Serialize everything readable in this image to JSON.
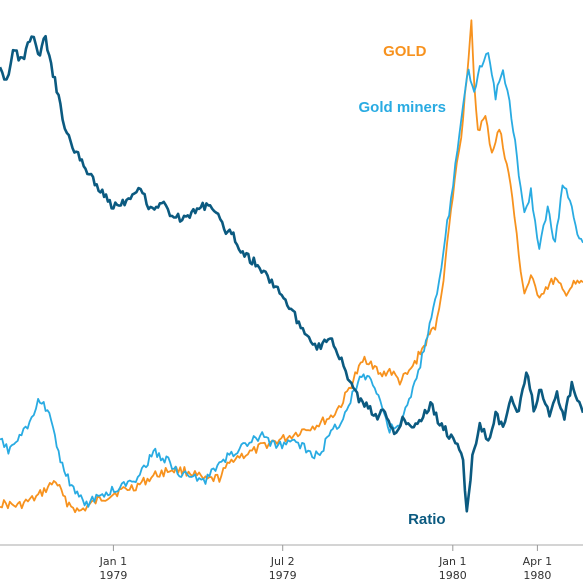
{
  "chart_data": {
    "type": "line",
    "title": "",
    "xlabel": "",
    "ylabel": "",
    "x_range": [
      "1978-09-01",
      "1980-05-20"
    ],
    "grid": false,
    "legend": "inline labels",
    "x_ticks": [
      {
        "date": "1979-01-01",
        "line1": "Jan 1",
        "line2": "1979"
      },
      {
        "date": "1979-07-02",
        "line1": "Jul 2",
        "line2": "1979"
      },
      {
        "date": "1980-01-01",
        "line1": "Jan 1",
        "line2": "1980"
      },
      {
        "date": "1980-04-01",
        "line1": "Apr 1",
        "line2": "1980"
      }
    ],
    "series": [
      {
        "name": "GOLD",
        "color": "#f7921e",
        "label_date": "1980-01-12",
        "points": [
          [
            "1978-09-01",
            0.08
          ],
          [
            "1978-09-20",
            0.07
          ],
          [
            "1978-10-10",
            0.1
          ],
          [
            "1978-10-31",
            0.16
          ],
          [
            "1978-11-10",
            0.09
          ],
          [
            "1978-11-25",
            0.05
          ],
          [
            "1978-12-15",
            0.09
          ],
          [
            "1979-01-05",
            0.12
          ],
          [
            "1979-01-25",
            0.14
          ],
          [
            "1979-02-15",
            0.18
          ],
          [
            "1979-03-05",
            0.2
          ],
          [
            "1979-03-25",
            0.19
          ],
          [
            "1979-04-10",
            0.16
          ],
          [
            "1979-04-25",
            0.17
          ],
          [
            "1979-05-10",
            0.24
          ],
          [
            "1979-05-30",
            0.26
          ],
          [
            "1979-06-15",
            0.29
          ],
          [
            "1979-07-05",
            0.31
          ],
          [
            "1979-07-25",
            0.34
          ],
          [
            "1979-08-10",
            0.36
          ],
          [
            "1979-08-25",
            0.39
          ],
          [
            "1979-09-05",
            0.44
          ],
          [
            "1979-09-18",
            0.53
          ],
          [
            "1979-09-28",
            0.59
          ],
          [
            "1979-10-05",
            0.58
          ],
          [
            "1979-10-15",
            0.53
          ],
          [
            "1979-10-25",
            0.55
          ],
          [
            "1979-11-05",
            0.51
          ],
          [
            "1979-11-15",
            0.54
          ],
          [
            "1979-11-25",
            0.6
          ],
          [
            "1979-12-05",
            0.66
          ],
          [
            "1979-12-15",
            0.72
          ],
          [
            "1979-12-22",
            0.88
          ],
          [
            "1979-12-28",
            1.05
          ],
          [
            "1980-01-03",
            1.22
          ],
          [
            "1980-01-10",
            1.38
          ],
          [
            "1980-01-14",
            1.52
          ],
          [
            "1980-01-18",
            1.66
          ],
          [
            "1980-01-21",
            1.77
          ],
          [
            "1980-01-24",
            1.55
          ],
          [
            "1980-01-28",
            1.4
          ],
          [
            "1980-02-05",
            1.44
          ],
          [
            "1980-02-12",
            1.32
          ],
          [
            "1980-02-20",
            1.4
          ],
          [
            "1980-02-28",
            1.28
          ],
          [
            "1980-03-05",
            1.16
          ],
          [
            "1980-03-12",
            0.95
          ],
          [
            "1980-03-18",
            0.82
          ],
          [
            "1980-03-25",
            0.88
          ],
          [
            "1980-04-01",
            0.81
          ],
          [
            "1980-04-10",
            0.84
          ],
          [
            "1980-04-20",
            0.87
          ],
          [
            "1980-04-30",
            0.82
          ],
          [
            "1980-05-10",
            0.85
          ],
          [
            "1980-05-20",
            0.86
          ]
        ]
      },
      {
        "name": "Gold miners",
        "color": "#29abe2",
        "label_date": "1979-12-22",
        "points": [
          [
            "1978-09-01",
            0.3
          ],
          [
            "1978-09-10",
            0.27
          ],
          [
            "1978-09-22",
            0.31
          ],
          [
            "1978-10-05",
            0.37
          ],
          [
            "1978-10-12",
            0.44
          ],
          [
            "1978-10-20",
            0.42
          ],
          [
            "1978-10-28",
            0.35
          ],
          [
            "1978-11-05",
            0.24
          ],
          [
            "1978-11-15",
            0.15
          ],
          [
            "1978-11-25",
            0.1
          ],
          [
            "1978-12-05",
            0.08
          ],
          [
            "1978-12-20",
            0.11
          ],
          [
            "1979-01-10",
            0.14
          ],
          [
            "1979-01-25",
            0.17
          ],
          [
            "1979-02-05",
            0.22
          ],
          [
            "1979-02-15",
            0.26
          ],
          [
            "1979-03-01",
            0.23
          ],
          [
            "1979-03-15",
            0.18
          ],
          [
            "1979-04-01",
            0.17
          ],
          [
            "1979-04-10",
            0.16
          ],
          [
            "1979-04-25",
            0.22
          ],
          [
            "1979-05-10",
            0.26
          ],
          [
            "1979-05-25",
            0.29
          ],
          [
            "1979-06-10",
            0.32
          ],
          [
            "1979-06-25",
            0.28
          ],
          [
            "1979-07-10",
            0.3
          ],
          [
            "1979-07-25",
            0.28
          ],
          [
            "1979-08-05",
            0.24
          ],
          [
            "1979-08-15",
            0.28
          ],
          [
            "1979-08-25",
            0.34
          ],
          [
            "1979-09-05",
            0.38
          ],
          [
            "1979-09-15",
            0.46
          ],
          [
            "1979-09-25",
            0.54
          ],
          [
            "1979-10-05",
            0.52
          ],
          [
            "1979-10-15",
            0.44
          ],
          [
            "1979-10-25",
            0.34
          ],
          [
            "1979-11-05",
            0.36
          ],
          [
            "1979-11-15",
            0.44
          ],
          [
            "1979-11-25",
            0.54
          ],
          [
            "1979-12-05",
            0.68
          ],
          [
            "1979-12-15",
            0.82
          ],
          [
            "1979-12-22",
            0.98
          ],
          [
            "1979-12-30",
            1.15
          ],
          [
            "1980-01-06",
            1.32
          ],
          [
            "1980-01-12",
            1.5
          ],
          [
            "1980-01-18",
            1.62
          ],
          [
            "1980-01-24",
            1.52
          ],
          [
            "1980-01-30",
            1.62
          ],
          [
            "1980-02-08",
            1.66
          ],
          [
            "1980-02-16",
            1.52
          ],
          [
            "1980-02-24",
            1.6
          ],
          [
            "1980-03-02",
            1.5
          ],
          [
            "1980-03-10",
            1.3
          ],
          [
            "1980-03-18",
            1.1
          ],
          [
            "1980-03-25",
            1.18
          ],
          [
            "1980-04-03",
            0.98
          ],
          [
            "1980-04-12",
            1.12
          ],
          [
            "1980-04-20",
            1.0
          ],
          [
            "1980-04-28",
            1.2
          ],
          [
            "1980-05-06",
            1.16
          ],
          [
            "1980-05-14",
            1.04
          ],
          [
            "1980-05-20",
            1.0
          ]
        ]
      },
      {
        "name": "Ratio",
        "color": "#0b5a80",
        "label_date": "1980-01-12",
        "points": [
          [
            "1978-09-01",
            1.63
          ],
          [
            "1978-09-08",
            1.57
          ],
          [
            "1978-09-15",
            1.68
          ],
          [
            "1978-09-25",
            1.64
          ],
          [
            "1978-10-05",
            1.74
          ],
          [
            "1978-10-12",
            1.66
          ],
          [
            "1978-10-20",
            1.72
          ],
          [
            "1978-10-28",
            1.6
          ],
          [
            "1978-11-05",
            1.48
          ],
          [
            "1978-11-12",
            1.38
          ],
          [
            "1978-11-20",
            1.33
          ],
          [
            "1978-11-28",
            1.28
          ],
          [
            "1978-12-08",
            1.24
          ],
          [
            "1978-12-18",
            1.18
          ],
          [
            "1979-01-01",
            1.13
          ],
          [
            "1979-01-15",
            1.15
          ],
          [
            "1979-01-28",
            1.2
          ],
          [
            "1979-02-10",
            1.12
          ],
          [
            "1979-02-22",
            1.14
          ],
          [
            "1979-03-05",
            1.1
          ],
          [
            "1979-03-18",
            1.08
          ],
          [
            "1979-04-01",
            1.12
          ],
          [
            "1979-04-15",
            1.14
          ],
          [
            "1979-04-28",
            1.06
          ],
          [
            "1979-05-10",
            1.02
          ],
          [
            "1979-05-22",
            0.96
          ],
          [
            "1979-06-05",
            0.92
          ],
          [
            "1979-06-18",
            0.87
          ],
          [
            "1979-07-01",
            0.82
          ],
          [
            "1979-07-15",
            0.74
          ],
          [
            "1979-07-28",
            0.68
          ],
          [
            "1979-08-10",
            0.63
          ],
          [
            "1979-08-20",
            0.67
          ],
          [
            "1979-09-01",
            0.6
          ],
          [
            "1979-09-10",
            0.52
          ],
          [
            "1979-09-20",
            0.46
          ],
          [
            "1979-09-30",
            0.42
          ],
          [
            "1979-10-10",
            0.39
          ],
          [
            "1979-10-20",
            0.4
          ],
          [
            "1979-10-30",
            0.33
          ],
          [
            "1979-11-08",
            0.38
          ],
          [
            "1979-11-18",
            0.35
          ],
          [
            "1979-11-28",
            0.38
          ],
          [
            "1979-12-08",
            0.43
          ],
          [
            "1979-12-18",
            0.36
          ],
          [
            "1979-12-28",
            0.32
          ],
          [
            "1980-01-06",
            0.3
          ],
          [
            "1980-01-12",
            0.22
          ],
          [
            "1980-01-16",
            0.04
          ],
          [
            "1980-01-22",
            0.24
          ],
          [
            "1980-01-30",
            0.36
          ],
          [
            "1980-02-08",
            0.3
          ],
          [
            "1980-02-16",
            0.4
          ],
          [
            "1980-02-24",
            0.34
          ],
          [
            "1980-03-04",
            0.45
          ],
          [
            "1980-03-12",
            0.4
          ],
          [
            "1980-03-20",
            0.55
          ],
          [
            "1980-03-28",
            0.42
          ],
          [
            "1980-04-05",
            0.48
          ],
          [
            "1980-04-14",
            0.4
          ],
          [
            "1980-04-22",
            0.46
          ],
          [
            "1980-04-30",
            0.38
          ],
          [
            "1980-05-08",
            0.5
          ],
          [
            "1980-05-14",
            0.44
          ],
          [
            "1980-05-20",
            0.4
          ]
        ]
      }
    ]
  }
}
